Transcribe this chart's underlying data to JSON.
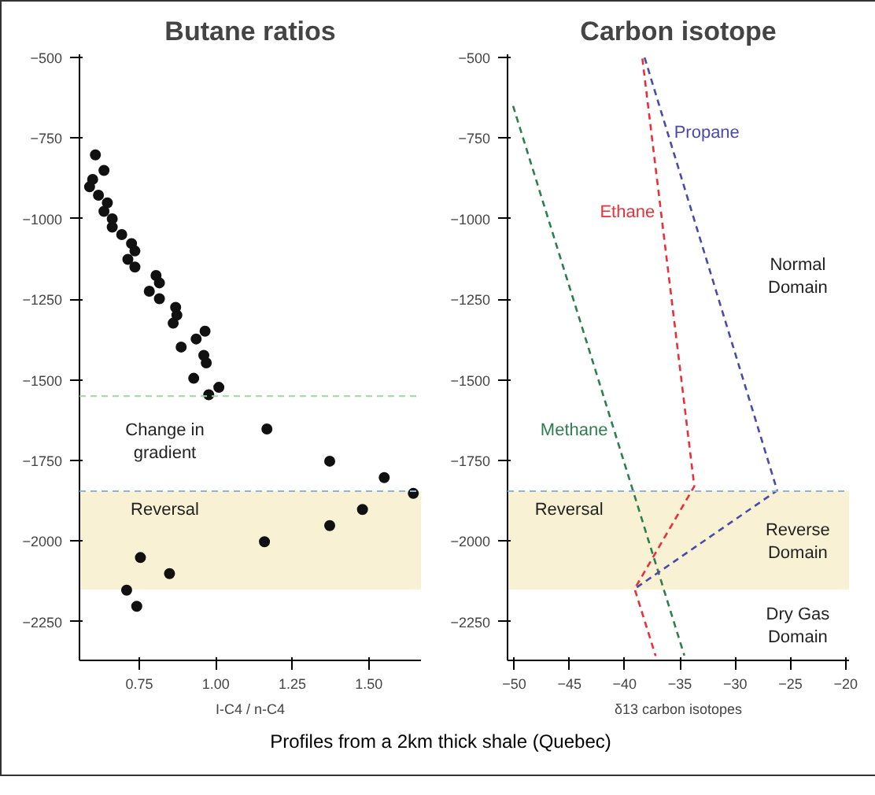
{
  "chart_data": [
    {
      "type": "scatter",
      "title": "Butane ratios",
      "xlabel": "I-C4 / n-C4",
      "marker": "circle",
      "grid": false,
      "xlim": [
        0.555,
        1.67
      ],
      "ylim": [
        -2370,
        -490
      ],
      "xticks": [
        {
          "value": 0.75,
          "label": "0.75"
        },
        {
          "value": 1.0,
          "label": "1.00"
        },
        {
          "value": 1.25,
          "label": "1.25"
        },
        {
          "value": 1.5,
          "label": "1.50"
        }
      ],
      "yticks": [
        -500,
        -750,
        -1000,
        -1250,
        -1500,
        -1750,
        -2000,
        -2250
      ],
      "series": [
        {
          "color": "#111111",
          "x": [
            0.607,
            0.635,
            0.598,
            0.588,
            0.617,
            0.646,
            0.635,
            0.662,
            0.662,
            0.693,
            0.725,
            0.736,
            0.713,
            0.736,
            0.805,
            0.816,
            0.783,
            0.816,
            0.869,
            0.873,
            0.861,
            0.887,
            0.936,
            0.965,
            0.961,
            0.969,
            0.928,
            0.977,
            1.01,
            1.167,
            1.372,
            1.55,
            1.645,
            1.479,
            1.372,
            1.159,
            0.754,
            0.849,
            0.709,
            0.742
          ],
          "values": [
            -802,
            -850,
            -878,
            -901,
            -927,
            -951,
            -977,
            -1000,
            -1026,
            -1049,
            -1077,
            -1100,
            -1126,
            -1150,
            -1176,
            -1199,
            -1225,
            -1248,
            -1275,
            -1299,
            -1324,
            -1398,
            -1373,
            -1349,
            -1424,
            -1447,
            -1495,
            -1546,
            -1523,
            -1652,
            -1752,
            -1803,
            -1852,
            -1902,
            -1952,
            -2002,
            -2051,
            -2101,
            -2152,
            -2202
          ]
        }
      ],
      "ref_lines": [
        {
          "axis": "y",
          "value": -1550,
          "color": "#9fd89f",
          "line_style": "dashed"
        },
        {
          "axis": "y",
          "value": -1845,
          "color": "#8fb4e0",
          "line_style": "dashed"
        }
      ],
      "bands": [
        {
          "axis": "y",
          "from": -2150,
          "to": -1845,
          "color": "#f8f1d4",
          "label": "Reversal"
        }
      ],
      "annotations": [
        "Change in\ngradient",
        "Profiles from a 2km thick shale (Quebec)"
      ]
    },
    {
      "type": "line",
      "title": "Carbon isotope",
      "xlabel": "δ13 carbon isotopes",
      "grid": false,
      "line_style": "dashed",
      "xlim": [
        -50.6,
        -19.7
      ],
      "ylim": [
        -2370,
        -490
      ],
      "xticks": [
        -50,
        -45,
        -40,
        -35,
        -30,
        -25,
        -20
      ],
      "yticks": [
        -500,
        -750,
        -1000,
        -1250,
        -1500,
        -1750,
        -2000,
        -2250
      ],
      "series": [
        {
          "name": "Methane",
          "color": "#2e7d4f",
          "x": [
            -50.1,
            -34.6
          ],
          "values": [
            -650,
            -2355
          ]
        },
        {
          "name": "Ethane",
          "color": "#e8303a",
          "x": [
            -38.4,
            -33.7,
            -39.1,
            -37.2
          ],
          "values": [
            -503,
            -1830,
            -2148,
            -2356
          ]
        },
        {
          "name": "Propane",
          "color": "#4a4aa8",
          "x": [
            -38.2,
            -26.2,
            -39.1
          ],
          "values": [
            -500,
            -1843,
            -2148
          ]
        }
      ],
      "ref_lines": [
        {
          "axis": "y",
          "value": -1845,
          "color": "#8fb4e0",
          "line_style": "dashed"
        }
      ],
      "bands": [
        {
          "axis": "y",
          "from": -2150,
          "to": -1845,
          "color": "#f8f1d4",
          "label": "Reversal"
        }
      ],
      "annotations": [
        "Normal\nDomain",
        "Reverse\nDomain",
        "Dry Gas\nDomain"
      ]
    }
  ]
}
